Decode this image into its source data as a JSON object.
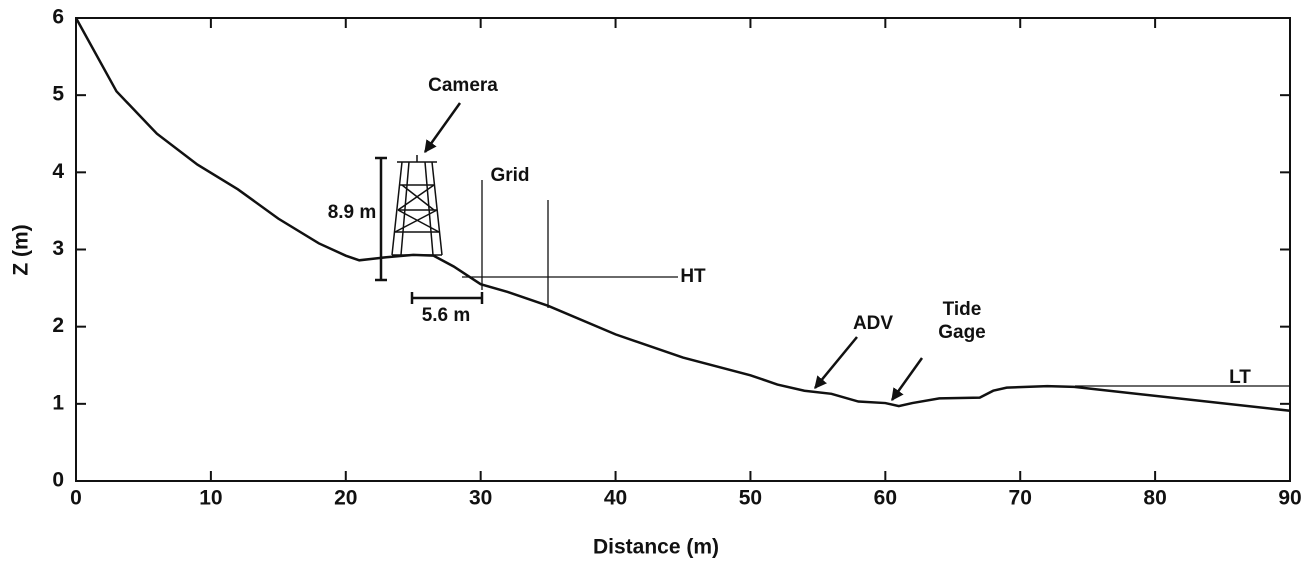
{
  "chart_data": {
    "type": "line",
    "x_label": "Distance (m)",
    "y_label": "Z (m)",
    "x": [
      0,
      3,
      6,
      9,
      12,
      15,
      18,
      20,
      21,
      23,
      25,
      26.5,
      28,
      30,
      32,
      35,
      40,
      45,
      50,
      52,
      54,
      56,
      58,
      60,
      61,
      62,
      64,
      67,
      68,
      69,
      72,
      74,
      90
    ],
    "series": [
      {
        "color": "#111111",
        "values": [
          6,
          5.05,
          4.5,
          4.1,
          3.78,
          3.4,
          3.08,
          2.92,
          2.86,
          2.9,
          2.93,
          2.92,
          2.78,
          2.55,
          2.45,
          2.27,
          1.9,
          1.6,
          1.37,
          1.25,
          1.17,
          1.13,
          1.03,
          1.01,
          0.97,
          1.01,
          1.07,
          1.08,
          1.17,
          1.21,
          1.23,
          1.22,
          0.91
        ]
      }
    ],
    "xlim": [
      0,
      90
    ],
    "ylim": [
      0,
      6
    ],
    "xticks": [
      0,
      10,
      20,
      30,
      40,
      50,
      60,
      70,
      80,
      90
    ],
    "yticks": [
      0,
      1,
      2,
      3,
      4,
      5,
      6
    ],
    "annotations": [
      "Camera",
      "Grid",
      "8.9 m",
      "5.6 m",
      "HT",
      "ADV",
      "Tide",
      "Gage",
      "LT"
    ]
  }
}
